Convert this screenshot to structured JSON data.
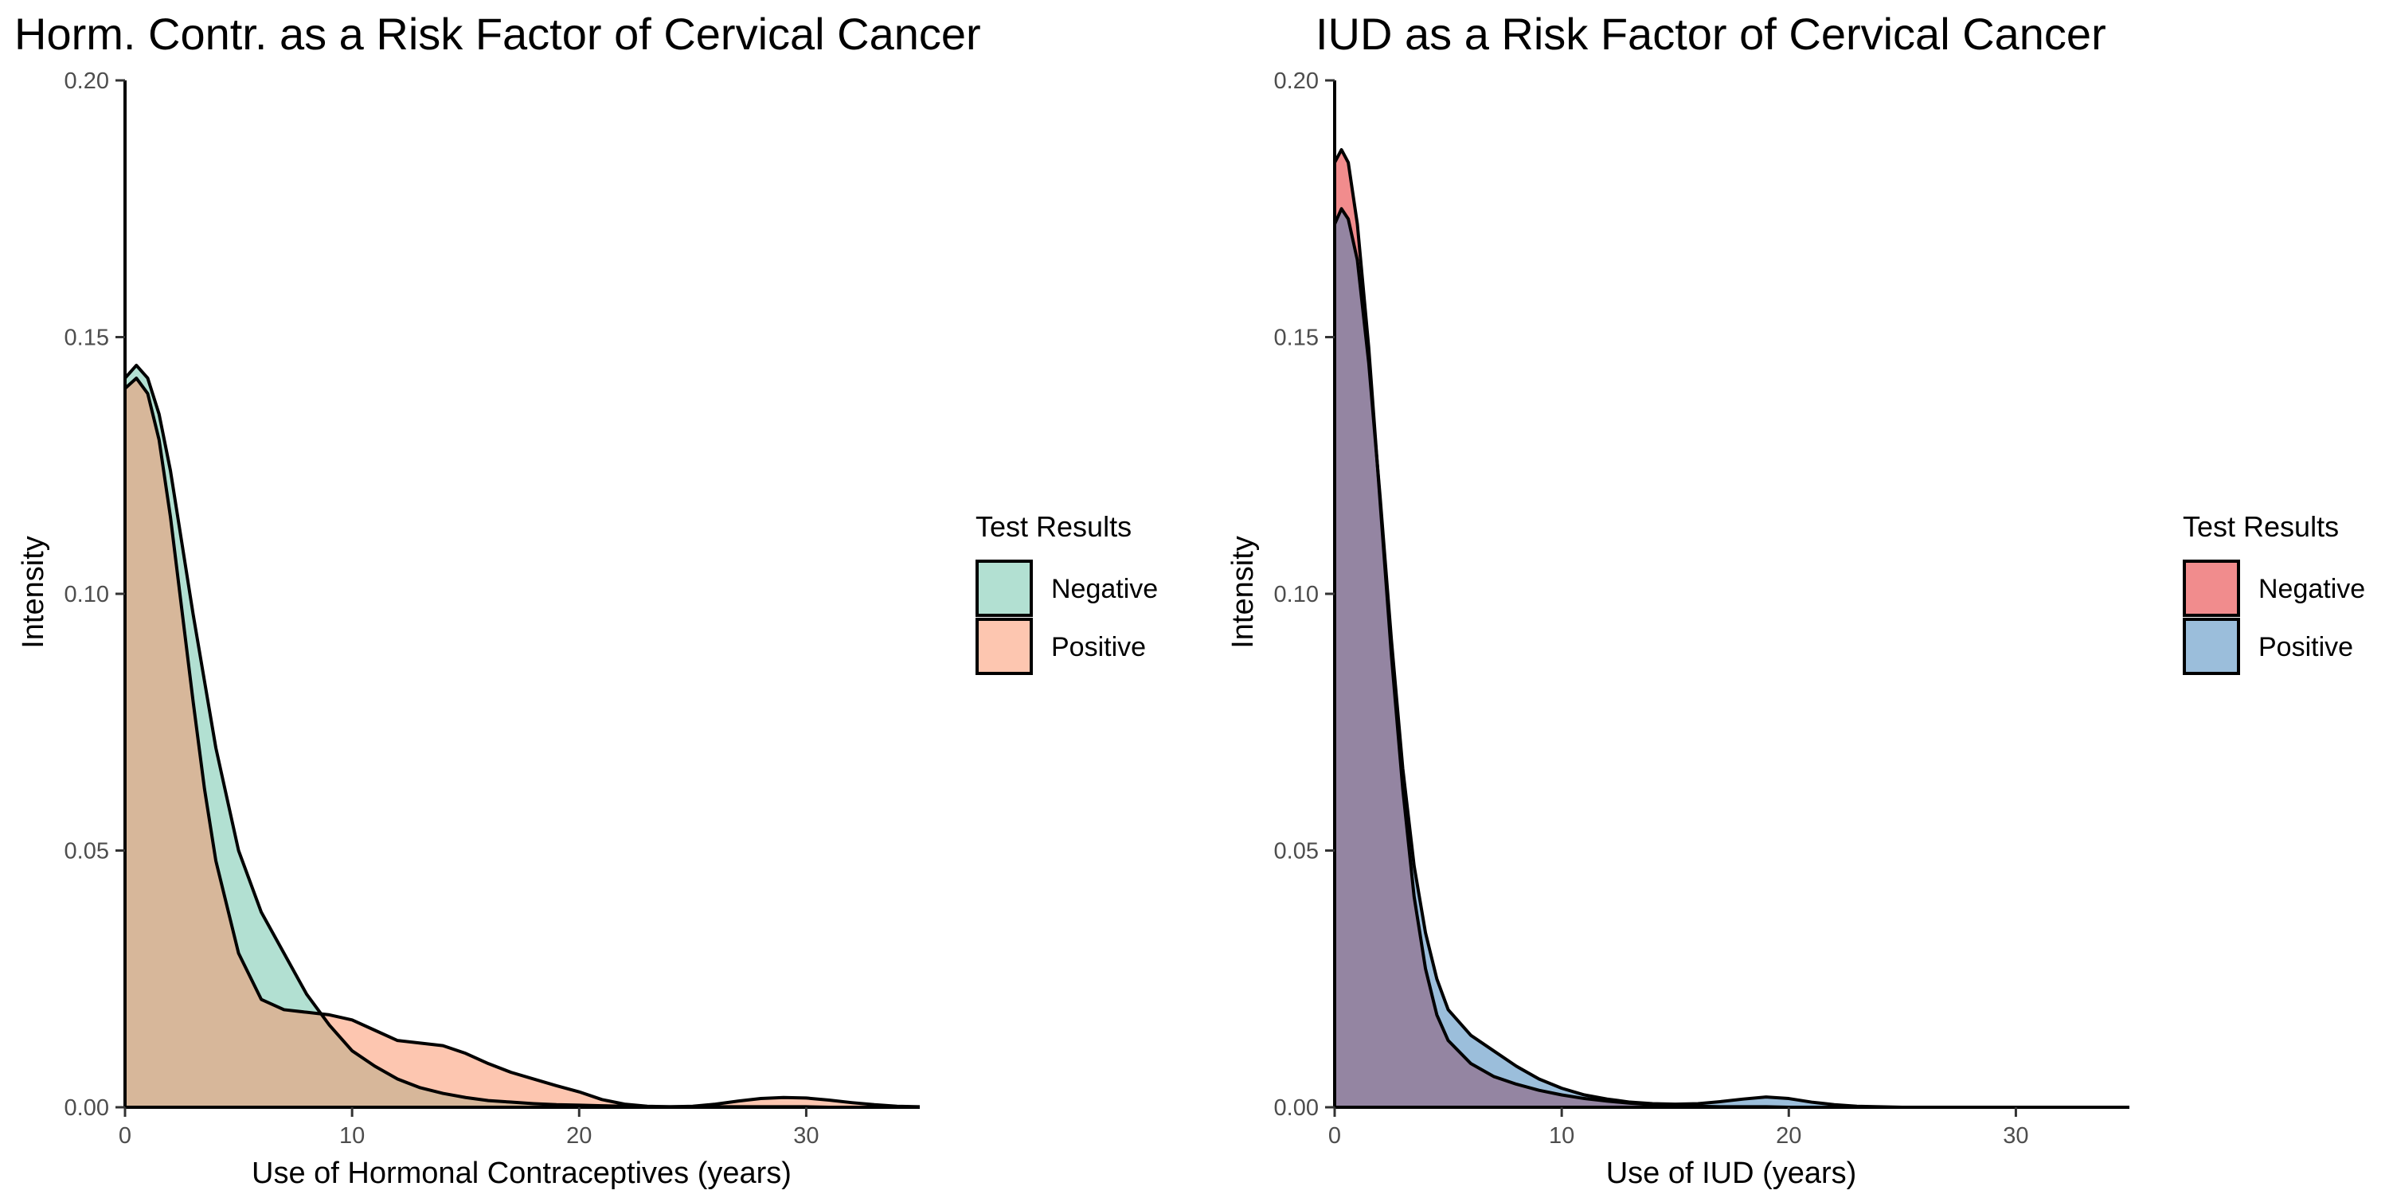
{
  "chart_data": [
    {
      "type": "area",
      "title": "Horm. Contr. as a Risk Factor of Cervical Cancer",
      "xlabel": "Use of Hormonal Contraceptives (years)",
      "ylabel": "Intensity",
      "xlim": [
        0,
        35
      ],
      "ylim": [
        0,
        0.2
      ],
      "x_ticks": [
        0,
        10,
        20,
        30
      ],
      "x_tick_labels": [
        "0",
        "10",
        "20",
        "30"
      ],
      "y_ticks": [
        0,
        0.05,
        0.1,
        0.15,
        0.2
      ],
      "y_tick_labels": [
        "0.00",
        "0.05",
        "0.10",
        "0.15",
        "0.20"
      ],
      "grid": false,
      "legend": {
        "title": "Test Results",
        "placement": "right",
        "entries": [
          "Negative",
          "Positive"
        ]
      },
      "series": [
        {
          "name": "Negative",
          "color": "#66c2a5",
          "fill_opacity": 0.5,
          "x": [
            0,
            0.5,
            1,
            1.5,
            2,
            2.5,
            3,
            3.5,
            4,
            5,
            6,
            7,
            8,
            9,
            10,
            11,
            12,
            13,
            14,
            15,
            16,
            17,
            18,
            19,
            20,
            21,
            22,
            23,
            24,
            25,
            26,
            27,
            28,
            29,
            30,
            31,
            32,
            33,
            34,
            35
          ],
          "values": [
            0.142,
            0.1445,
            0.142,
            0.135,
            0.124,
            0.11,
            0.096,
            0.083,
            0.07,
            0.05,
            0.038,
            0.03,
            0.022,
            0.016,
            0.011,
            0.008,
            0.0055,
            0.0038,
            0.0027,
            0.0019,
            0.0013,
            0.001,
            0.0007,
            0.0005,
            0.0004,
            0.0003,
            0.0002,
            0.0001,
            0.0001,
            0.0001,
            0.0001,
            0.0001,
            0.0001,
            0.0001,
            0.0001,
            0,
            0,
            0,
            0,
            0
          ]
        },
        {
          "name": "Positive",
          "color": "#fc8d62",
          "fill_opacity": 0.5,
          "x": [
            0,
            0.5,
            1,
            1.5,
            2,
            2.5,
            3,
            3.5,
            4,
            5,
            6,
            7,
            8,
            9,
            10,
            11,
            12,
            13,
            14,
            15,
            16,
            17,
            18,
            19,
            20,
            21,
            22,
            23,
            24,
            25,
            26,
            27,
            28,
            29,
            30,
            31,
            32,
            33,
            34,
            35
          ],
          "values": [
            0.14,
            0.142,
            0.139,
            0.13,
            0.115,
            0.097,
            0.079,
            0.062,
            0.048,
            0.03,
            0.021,
            0.019,
            0.0185,
            0.018,
            0.017,
            0.015,
            0.013,
            0.0125,
            0.012,
            0.0105,
            0.0085,
            0.0068,
            0.0055,
            0.0042,
            0.003,
            0.0015,
            0.0006,
            0.0002,
            0.0001,
            0.0002,
            0.0006,
            0.0012,
            0.0017,
            0.0019,
            0.0018,
            0.0014,
            0.0009,
            0.0005,
            0.0002,
            0.0001
          ]
        }
      ]
    },
    {
      "type": "area",
      "title": "IUD as a Risk Factor of Cervical Cancer",
      "xlabel": "Use of IUD (years)",
      "ylabel": "Intensity",
      "xlim": [
        0,
        35
      ],
      "ylim": [
        0,
        0.2
      ],
      "x_ticks": [
        0,
        10,
        20,
        30
      ],
      "x_tick_labels": [
        "0",
        "10",
        "20",
        "30"
      ],
      "y_ticks": [
        0,
        0.05,
        0.1,
        0.15,
        0.2
      ],
      "y_tick_labels": [
        "0.00",
        "0.05",
        "0.10",
        "0.15",
        "0.20"
      ],
      "grid": false,
      "legend": {
        "title": "Test Results",
        "placement": "right",
        "entries": [
          "Negative",
          "Positive"
        ]
      },
      "series": [
        {
          "name": "Negative",
          "color": "#e41a1c",
          "fill_opacity": 0.5,
          "x": [
            0,
            0.3,
            0.6,
            1,
            1.5,
            2,
            2.5,
            3,
            3.5,
            4,
            4.5,
            5,
            6,
            7,
            8,
            9,
            10,
            11,
            12,
            13,
            14,
            15,
            16,
            17,
            18,
            19,
            20,
            21,
            22,
            23,
            24,
            25,
            26,
            27,
            28,
            29,
            30,
            31,
            32,
            33,
            34,
            35
          ],
          "values": [
            0.184,
            0.1865,
            0.184,
            0.172,
            0.148,
            0.118,
            0.088,
            0.062,
            0.041,
            0.027,
            0.018,
            0.013,
            0.0085,
            0.006,
            0.0045,
            0.0033,
            0.0024,
            0.0017,
            0.0012,
            0.0008,
            0.0005,
            0.0003,
            0.0002,
            0.0001,
            0.0001,
            0.0001,
            0,
            0,
            0,
            0,
            0,
            0,
            0,
            0,
            0,
            0,
            0,
            0,
            0,
            0,
            0,
            0
          ]
        },
        {
          "name": "Positive",
          "color": "#377eb8",
          "fill_opacity": 0.5,
          "x": [
            0,
            0.3,
            0.6,
            1,
            1.5,
            2,
            2.5,
            3,
            3.5,
            4,
            4.5,
            5,
            6,
            7,
            8,
            9,
            10,
            11,
            12,
            13,
            14,
            15,
            16,
            17,
            18,
            19,
            20,
            21,
            22,
            23,
            24,
            25,
            26,
            27,
            28,
            29,
            30,
            31,
            32,
            33,
            34,
            35
          ],
          "values": [
            0.172,
            0.175,
            0.173,
            0.165,
            0.145,
            0.119,
            0.091,
            0.066,
            0.047,
            0.034,
            0.025,
            0.019,
            0.014,
            0.011,
            0.008,
            0.0055,
            0.0037,
            0.0024,
            0.0016,
            0.001,
            0.0007,
            0.0006,
            0.0007,
            0.0011,
            0.0016,
            0.002,
            0.0017,
            0.001,
            0.0005,
            0.0002,
            0.0001,
            0,
            0,
            0,
            0,
            0,
            0,
            0,
            0,
            0,
            0,
            0
          ]
        }
      ]
    }
  ]
}
